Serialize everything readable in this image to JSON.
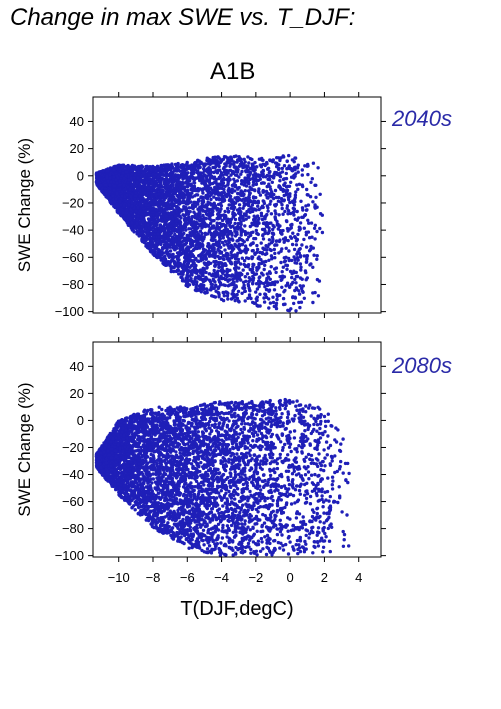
{
  "title": "Change in max SWE vs. T_DJF:",
  "scenario": "A1B",
  "colors": {
    "points": "#1f1fb8",
    "period_label": "#2a2aa8",
    "axes": "#000000"
  },
  "chart_data": [
    {
      "type": "scatter",
      "panel_label": "2040s",
      "ylabel": "SWE Change (%)",
      "xlim": [
        -11.5,
        5.3
      ],
      "ylim": [
        -101,
        58
      ],
      "yticks": [
        40,
        20,
        0,
        -20,
        -40,
        -60,
        -80,
        -100
      ],
      "xticks": [],
      "envelope": {
        "x": [
          -11.3,
          -10,
          -8,
          -6,
          -4,
          -2,
          0,
          1,
          2
        ],
        "upper": [
          2,
          8,
          7,
          10,
          15,
          14,
          15,
          14,
          5
        ],
        "lower": [
          -6,
          -28,
          -58,
          -82,
          -92,
          -96,
          -100,
          -100,
          -88
        ]
      }
    },
    {
      "type": "scatter",
      "panel_label": "2080s",
      "ylabel": "SWE Change (%)",
      "xlabel": "T(DJF,degC)",
      "xlim": [
        -11.5,
        5.3
      ],
      "ylim": [
        -101,
        58
      ],
      "yticks": [
        40,
        20,
        0,
        -20,
        -40,
        -60,
        -80,
        -100
      ],
      "xticks": [
        -10,
        -8,
        -6,
        -4,
        -2,
        0,
        2,
        4
      ],
      "envelope": {
        "x": [
          -11.3,
          -10,
          -8,
          -6,
          -4,
          -2,
          0,
          2,
          3.5
        ],
        "upper": [
          -25,
          0,
          10,
          10,
          14,
          14,
          17,
          10,
          -20
        ],
        "lower": [
          -35,
          -55,
          -80,
          -95,
          -100,
          -100,
          -100,
          -100,
          -95
        ]
      }
    }
  ]
}
